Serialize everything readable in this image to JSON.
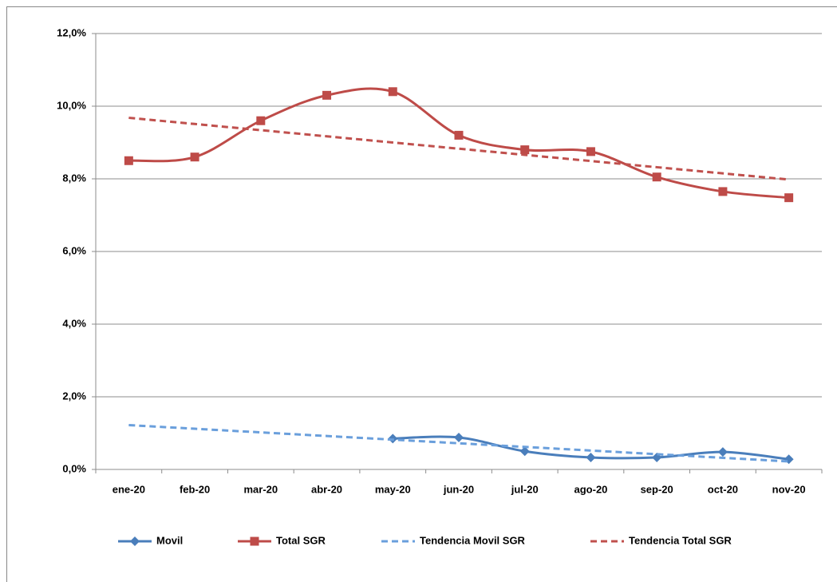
{
  "chart_data": {
    "type": "line",
    "categories": [
      "ene-20",
      "feb-20",
      "mar-20",
      "abr-20",
      "may-20",
      "jun-20",
      "jul-20",
      "ago-20",
      "sep-20",
      "oct-20",
      "nov-20"
    ],
    "series": [
      {
        "name": "Movil",
        "color": "#4a7ebb",
        "line_style": "solid",
        "marker": "diamond",
        "smooth": true,
        "values": [
          null,
          null,
          null,
          null,
          0.85,
          0.88,
          0.5,
          0.33,
          0.33,
          0.48,
          0.28
        ]
      },
      {
        "name": "Total SGR",
        "color": "#be4b48",
        "line_style": "solid",
        "marker": "square",
        "smooth": true,
        "values": [
          8.5,
          8.6,
          9.6,
          10.3,
          10.4,
          9.2,
          8.8,
          8.75,
          8.05,
          7.65,
          7.48
        ]
      },
      {
        "name": "Tendencia Movil SGR",
        "color": "#6a9fdc",
        "line_style": "dashed",
        "marker": "none",
        "smooth": false,
        "values": [
          1.22,
          1.12,
          1.02,
          0.92,
          0.82,
          0.72,
          0.62,
          0.52,
          0.42,
          0.32,
          0.22
        ]
      },
      {
        "name": "Tendencia Total SGR",
        "color": "#c0504d",
        "line_style": "dashed",
        "marker": "none",
        "smooth": false,
        "values": [
          9.68,
          9.51,
          9.34,
          9.17,
          9.0,
          8.83,
          8.66,
          8.49,
          8.32,
          8.15,
          7.98
        ]
      }
    ],
    "ylim": [
      0,
      12
    ],
    "yticks": [
      {
        "value": 0,
        "label": "0,0%"
      },
      {
        "value": 2,
        "label": "2,0%"
      },
      {
        "value": 4,
        "label": "4,0%"
      },
      {
        "value": 6,
        "label": "6,0%"
      },
      {
        "value": 8,
        "label": "8,0%"
      },
      {
        "value": 10,
        "label": "10,0%"
      },
      {
        "value": 12,
        "label": "12,0%"
      }
    ],
    "grid": true,
    "legend": "bottom"
  }
}
